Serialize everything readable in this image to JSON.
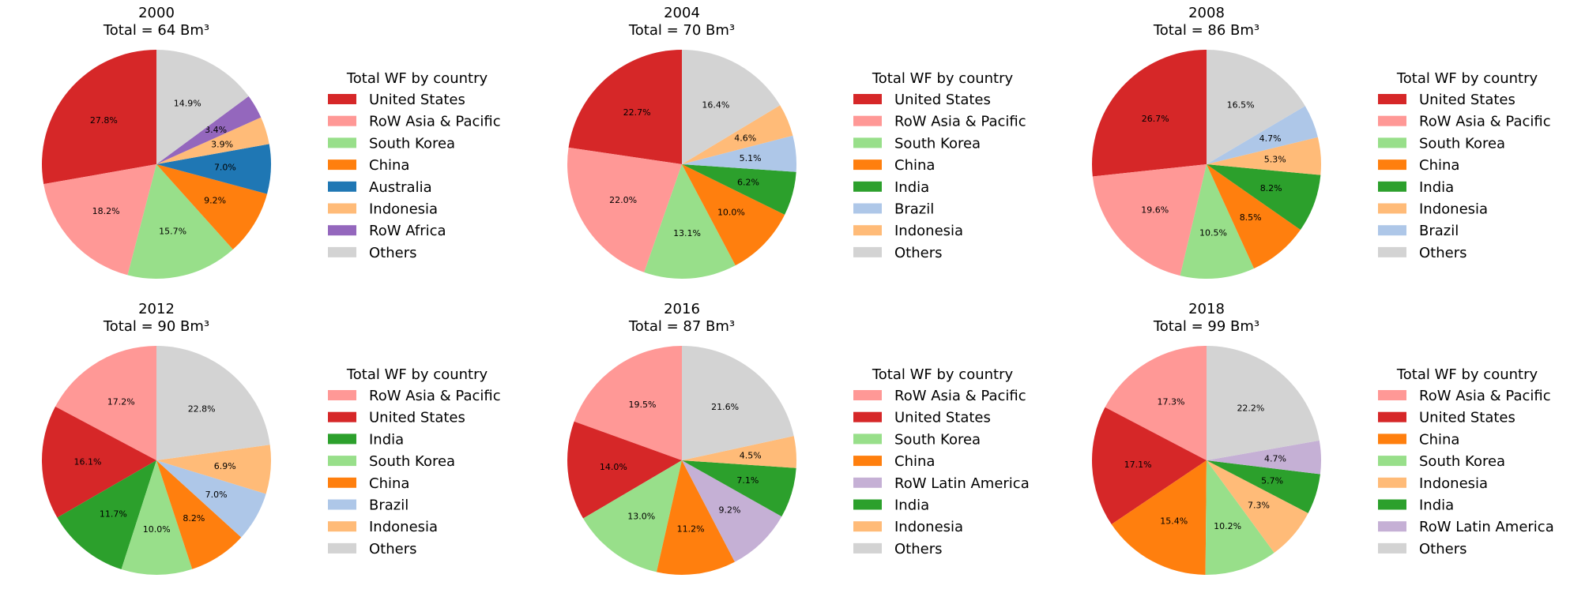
{
  "chart_data": [
    {
      "type": "pie",
      "title": "2000",
      "subtitle": "Total = 64 Bm³",
      "legend_title": "Total WF by country",
      "labels": [
        "United States",
        "RoW Asia & Pacific",
        "South Korea",
        "China",
        "Australia",
        "Indonesia",
        "RoW Africa",
        "Others"
      ],
      "values": [
        27.8,
        18.2,
        15.7,
        9.2,
        7.0,
        3.9,
        3.4,
        14.9
      ],
      "value_labels": [
        "27.8%",
        "18.2%",
        "15.7%",
        "9.2%",
        "7.0%",
        "3.9%",
        "3.4%",
        "14.9%"
      ],
      "colors": [
        "#d62728",
        "#ff9896",
        "#98df8a",
        "#ff7f0e",
        "#1f77b4",
        "#ffbb78",
        "#9467bd",
        "#d3d3d3"
      ]
    },
    {
      "type": "pie",
      "title": "2004",
      "subtitle": "Total = 70 Bm³",
      "legend_title": "Total WF by country",
      "labels": [
        "United States",
        "RoW Asia & Pacific",
        "South Korea",
        "China",
        "India",
        "Brazil",
        "Indonesia",
        "Others"
      ],
      "values": [
        22.7,
        22.0,
        13.1,
        10.0,
        6.2,
        5.1,
        4.6,
        16.4
      ],
      "value_labels": [
        "22.7%",
        "22.0%",
        "13.1%",
        "10.0%",
        "6.2%",
        "5.1%",
        "4.6%",
        "16.4%"
      ],
      "colors": [
        "#d62728",
        "#ff9896",
        "#98df8a",
        "#ff7f0e",
        "#2ca02c",
        "#aec7e8",
        "#ffbb78",
        "#d3d3d3"
      ]
    },
    {
      "type": "pie",
      "title": "2008",
      "subtitle": "Total = 86 Bm³",
      "legend_title": "Total WF by country",
      "labels": [
        "United States",
        "RoW Asia & Pacific",
        "South Korea",
        "China",
        "India",
        "Indonesia",
        "Brazil",
        "Others"
      ],
      "values": [
        26.7,
        19.6,
        10.5,
        8.5,
        8.2,
        5.3,
        4.7,
        16.5
      ],
      "value_labels": [
        "26.7%",
        "19.6%",
        "10.5%",
        "8.5%",
        "8.2%",
        "5.3%",
        "4.7%",
        "16.5%"
      ],
      "colors": [
        "#d62728",
        "#ff9896",
        "#98df8a",
        "#ff7f0e",
        "#2ca02c",
        "#ffbb78",
        "#aec7e8",
        "#d3d3d3"
      ]
    },
    {
      "type": "pie",
      "title": "2012",
      "subtitle": "Total = 90 Bm³",
      "legend_title": "Total WF by country",
      "labels": [
        "RoW Asia & Pacific",
        "United States",
        "India",
        "South Korea",
        "China",
        "Brazil",
        "Indonesia",
        "Others"
      ],
      "values": [
        17.2,
        16.1,
        11.7,
        10.0,
        8.2,
        7.0,
        6.9,
        22.8
      ],
      "value_labels": [
        "17.2%",
        "16.1%",
        "11.7%",
        "10.0%",
        "8.2%",
        "7.0%",
        "6.9%",
        "22.8%"
      ],
      "colors": [
        "#ff9896",
        "#d62728",
        "#2ca02c",
        "#98df8a",
        "#ff7f0e",
        "#aec7e8",
        "#ffbb78",
        "#d3d3d3"
      ]
    },
    {
      "type": "pie",
      "title": "2016",
      "subtitle": "Total = 87 Bm³",
      "legend_title": "Total WF by country",
      "labels": [
        "RoW Asia & Pacific",
        "United States",
        "South Korea",
        "China",
        "RoW Latin America",
        "India",
        "Indonesia",
        "Others"
      ],
      "values": [
        19.5,
        14.0,
        13.0,
        11.2,
        9.2,
        7.1,
        4.5,
        21.6
      ],
      "value_labels": [
        "19.5%",
        "14.0%",
        "13.0%",
        "11.2%",
        "9.2%",
        "7.1%",
        "4.5%",
        "21.6%"
      ],
      "colors": [
        "#ff9896",
        "#d62728",
        "#98df8a",
        "#ff7f0e",
        "#c5b0d5",
        "#2ca02c",
        "#ffbb78",
        "#d3d3d3"
      ]
    },
    {
      "type": "pie",
      "title": "2018",
      "subtitle": "Total = 99 Bm³",
      "legend_title": "Total WF by country",
      "labels": [
        "RoW Asia & Pacific",
        "United States",
        "China",
        "South Korea",
        "Indonesia",
        "India",
        "RoW Latin America",
        "Others"
      ],
      "values": [
        17.3,
        17.1,
        15.4,
        10.2,
        7.3,
        5.7,
        4.7,
        22.2
      ],
      "value_labels": [
        "17.3%",
        "17.1%",
        "15.4%",
        "10.2%",
        "7.3%",
        "5.7%",
        "4.7%",
        "22.2%"
      ],
      "colors": [
        "#ff9896",
        "#d62728",
        "#ff7f0e",
        "#98df8a",
        "#ffbb78",
        "#2ca02c",
        "#c5b0d5",
        "#d3d3d3"
      ]
    }
  ]
}
